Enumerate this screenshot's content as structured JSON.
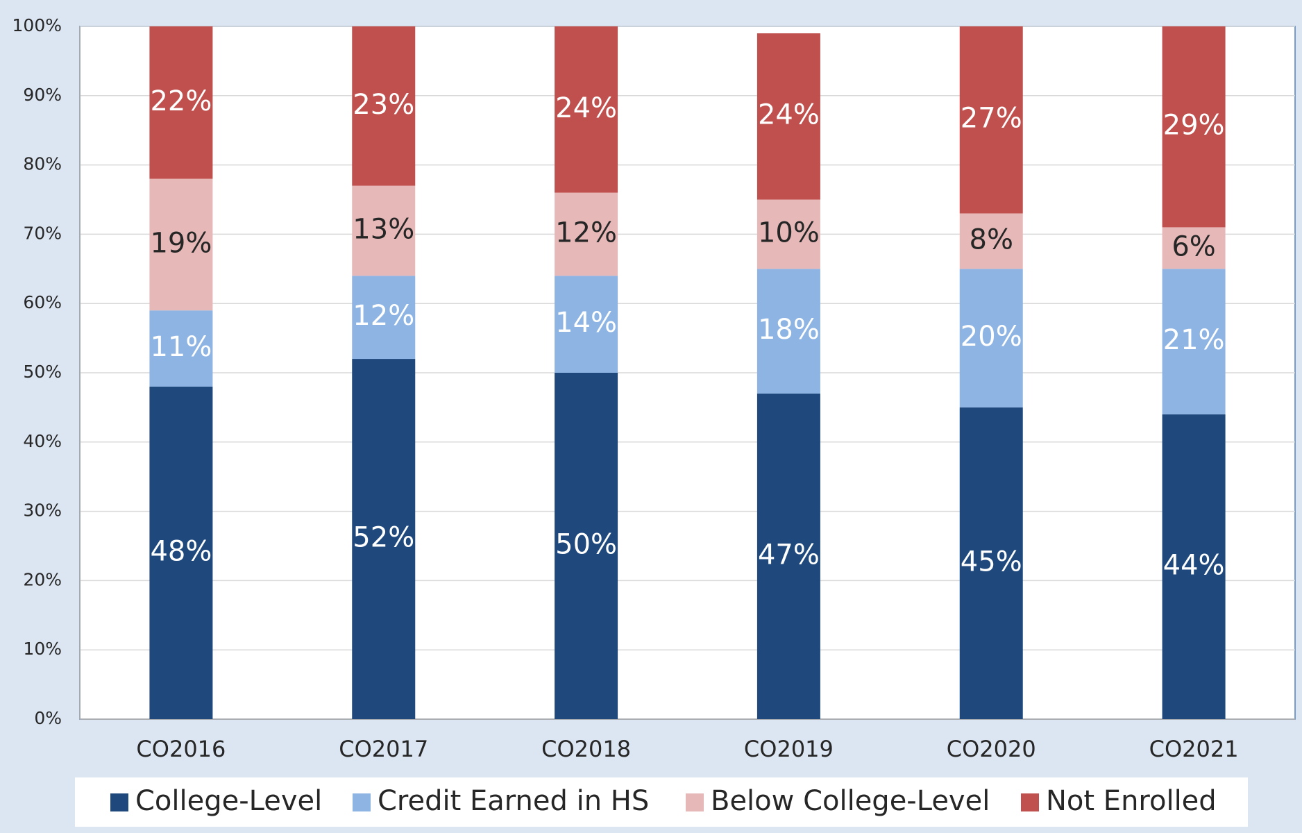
{
  "chart_data": {
    "type": "stacked_bar",
    "categories": [
      "CO2016",
      "CO2017",
      "CO2018",
      "CO2019",
      "CO2020",
      "CO2021"
    ],
    "series": [
      {
        "name": "College-Level",
        "color": "#1f497d",
        "label_color": "#ffffff",
        "values": [
          48,
          52,
          50,
          47,
          45,
          44
        ],
        "value_labels": [
          "48%",
          "52%",
          "50%",
          "47%",
          "45%",
          "44%"
        ]
      },
      {
        "name": "Credit Earned in HS",
        "color": "#8eb4e3",
        "label_color": "#ffffff",
        "values": [
          11,
          12,
          14,
          18,
          20,
          21
        ],
        "value_labels": [
          "11%",
          "12%",
          "14%",
          "18%",
          "20%",
          "21%"
        ]
      },
      {
        "name": "Below College-Level",
        "color": "#e6b9b8",
        "label_color": "#262626",
        "values": [
          19,
          13,
          12,
          10,
          8,
          6
        ],
        "value_labels": [
          "19%",
          "13%",
          "12%",
          "10%",
          "8%",
          "6%"
        ]
      },
      {
        "name": "Not Enrolled",
        "color": "#c0504d",
        "label_color": "#ffffff",
        "values": [
          22,
          23,
          24,
          24,
          27,
          29
        ],
        "value_labels": [
          "22%",
          "23%",
          "24%",
          "24%",
          "27%",
          "29%"
        ]
      }
    ],
    "ylim": [
      0,
      100
    ],
    "yticks": [
      {
        "value": 0,
        "label": "0%"
      },
      {
        "value": 10,
        "label": "10%"
      },
      {
        "value": 20,
        "label": "20%"
      },
      {
        "value": 30,
        "label": "30%"
      },
      {
        "value": 40,
        "label": "40%"
      },
      {
        "value": 50,
        "label": "50%"
      },
      {
        "value": 60,
        "label": "60%"
      },
      {
        "value": 70,
        "label": "70%"
      },
      {
        "value": 80,
        "label": "80%"
      },
      {
        "value": 90,
        "label": "90%"
      },
      {
        "value": 100,
        "label": "100%"
      }
    ],
    "grid": true,
    "legend": "bottom"
  }
}
